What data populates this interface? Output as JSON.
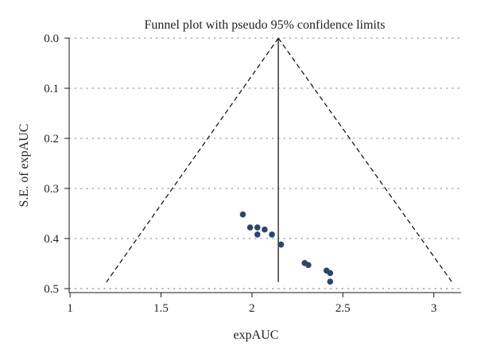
{
  "chart_data": {
    "type": "scatter",
    "title": "Funnel plot with pseudo 95% confidence limits",
    "xlabel": "expAUC",
    "ylabel": "S.E. of expAUC",
    "xlim": [
      0.995,
      3.15
    ],
    "ylim": [
      0.0,
      0.508
    ],
    "y_inverted": true,
    "x_ticks": [
      1,
      1.5,
      2,
      2.5,
      3
    ],
    "x_tick_labels": [
      "1",
      "1.5",
      "2",
      "2.5",
      "3"
    ],
    "y_ticks": [
      0.0,
      0.1,
      0.2,
      0.3,
      0.4,
      0.5
    ],
    "y_tick_labels": [
      "0.0",
      "0.1",
      "0.2",
      "0.3",
      "0.4",
      "0.5"
    ],
    "grid": "horizontal dotted",
    "pooled_estimate": 2.145,
    "funnel_limits": {
      "apex": [
        2.145,
        0.0
      ],
      "lower_left": [
        1.2,
        0.487
      ],
      "lower_right": [
        3.1,
        0.487
      ]
    },
    "points": [
      {
        "x": 1.95,
        "y": 0.352
      },
      {
        "x": 1.99,
        "y": 0.378
      },
      {
        "x": 2.03,
        "y": 0.378
      },
      {
        "x": 2.07,
        "y": 0.382
      },
      {
        "x": 2.03,
        "y": 0.392
      },
      {
        "x": 2.11,
        "y": 0.392
      },
      {
        "x": 2.16,
        "y": 0.412
      },
      {
        "x": 2.29,
        "y": 0.449
      },
      {
        "x": 2.31,
        "y": 0.453
      },
      {
        "x": 2.41,
        "y": 0.464
      },
      {
        "x": 2.43,
        "y": 0.469
      },
      {
        "x": 2.43,
        "y": 0.486
      }
    ],
    "colors": {
      "points": "#2b4570",
      "lines": "#1a1a1a",
      "grid": "#9a9a9a"
    }
  }
}
